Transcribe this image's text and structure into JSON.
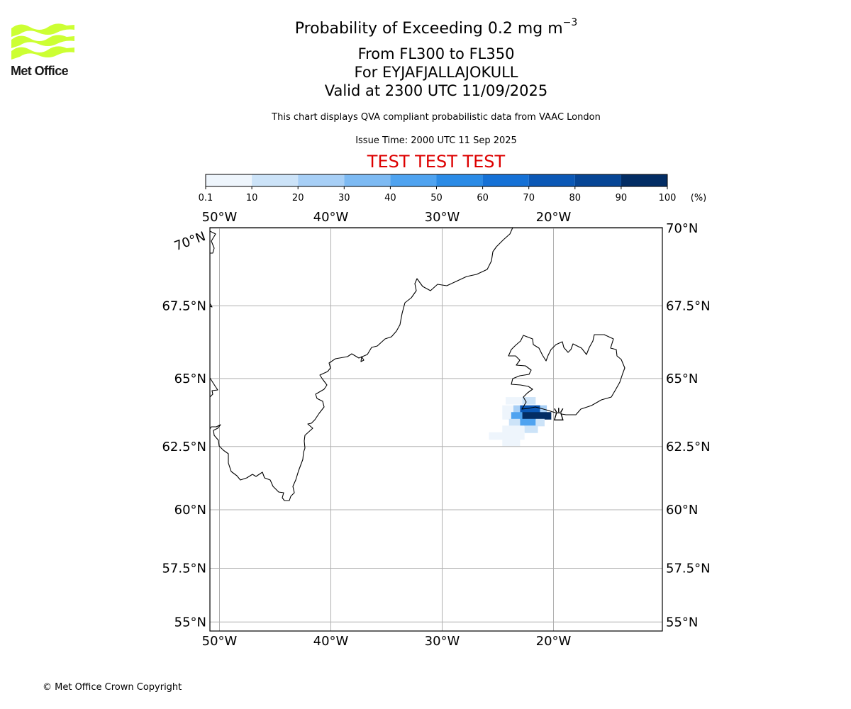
{
  "logo": {
    "text": "Met Office",
    "colors": {
      "waves": "#ccff33",
      "text": "#1a1a1a"
    }
  },
  "title": {
    "line1_main": "Probability of Exceeding 0.2 mg m",
    "line1_sup": "−3",
    "line2": "From FL300 to FL350",
    "line3": "For EYJAFJALLAJOKULL",
    "line4": "Valid at 2300 UTC 11/09/2025"
  },
  "subtitle": "This chart displays QVA compliant probabilistic data from VAAC London",
  "issue_time": "Issue Time: 2000 UTC 11 Sep 2025",
  "test_banner": {
    "text": "TEST TEST TEST",
    "color": "#dd0000"
  },
  "copyright": "© Met Office Crown Copyright",
  "colorbar": {
    "ticks": [
      "0.1",
      "10",
      "20",
      "30",
      "40",
      "50",
      "60",
      "70",
      "80",
      "90",
      "100"
    ],
    "unit": "(%)",
    "colors": [
      "#eef5fc",
      "#cce3f8",
      "#a7cff6",
      "#7dbaf3",
      "#4fa3f0",
      "#2b8be6",
      "#1571d6",
      "#0b58b6",
      "#064595",
      "#032d64"
    ]
  },
  "map": {
    "lon_labels": [
      "50°W",
      "40°W",
      "30°W",
      "20°W"
    ],
    "lat_labels_left": [
      "70°N",
      "67.5°N",
      "65°N",
      "62.5°N",
      "60°N",
      "57.5°N",
      "55°N"
    ],
    "lat_labels_right": [
      "70°N",
      "67.5°N",
      "65°N",
      "62.5°N",
      "60°N",
      "57.5°N",
      "55°N"
    ],
    "gridline_color": "#b0b0b0",
    "coastline_color": "#000000",
    "volcano": {
      "name": "EYJAFJALLAJOKULL",
      "lon": -19.6,
      "lat": 63.63,
      "icon": "volcano-icon"
    },
    "probability_cells": [
      {
        "lon_start": -24.3,
        "lon_end": -22.8,
        "lat": 64.2,
        "prob": 5
      },
      {
        "lon_start": -22.8,
        "lon_end": -21.6,
        "lat": 64.2,
        "prob": 15
      },
      {
        "lon_start": -24.6,
        "lon_end": -23.6,
        "lat": 63.9,
        "prob": 5
      },
      {
        "lon_start": -23.6,
        "lon_end": -23.0,
        "lat": 63.9,
        "prob": 25
      },
      {
        "lon_start": -23.0,
        "lon_end": -21.2,
        "lat": 63.9,
        "prob": 75
      },
      {
        "lon_start": -21.2,
        "lon_end": -20.6,
        "lat": 63.9,
        "prob": 25
      },
      {
        "lon_start": -24.6,
        "lon_end": -23.8,
        "lat": 63.65,
        "prob": 5
      },
      {
        "lon_start": -23.8,
        "lon_end": -22.8,
        "lat": 63.65,
        "prob": 45
      },
      {
        "lon_start": -22.8,
        "lon_end": -20.2,
        "lat": 63.65,
        "prob": 95
      },
      {
        "lon_start": -24.0,
        "lon_end": -23.0,
        "lat": 63.4,
        "prob": 15
      },
      {
        "lon_start": -23.0,
        "lon_end": -21.6,
        "lat": 63.4,
        "prob": 45
      },
      {
        "lon_start": -21.6,
        "lon_end": -20.8,
        "lat": 63.4,
        "prob": 15
      },
      {
        "lon_start": -24.6,
        "lon_end": -22.6,
        "lat": 63.15,
        "prob": 5
      },
      {
        "lon_start": -22.6,
        "lon_end": -21.4,
        "lat": 63.15,
        "prob": 15
      },
      {
        "lon_start": -25.8,
        "lon_end": -22.6,
        "lat": 62.9,
        "prob": 5
      },
      {
        "lon_start": -24.6,
        "lon_end": -23.0,
        "lat": 62.65,
        "prob": 5
      }
    ]
  }
}
